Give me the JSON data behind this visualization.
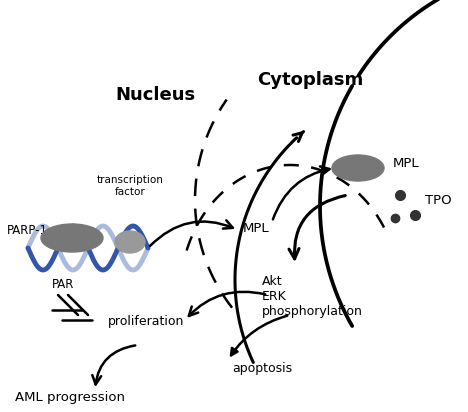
{
  "background_color": "#ffffff",
  "nucleus_label": "Nucleus",
  "cytoplasm_label": "Cytoplasm",
  "mpl_receptor_label": "MPL",
  "tpo_label": "TPO",
  "parp1_label": "PARP-1",
  "par_label": "PAR",
  "transcription_factor_label": "transcription\nfactor",
  "mpl_arrow_label": "MPL",
  "akt_label": "Akt\nERK\nphosphorylation",
  "proliferation_label": "proliferation",
  "apoptosis_label": "apoptosis",
  "aml_label": "AML progression",
  "dna_blue_dark": "#3355aa",
  "dna_blue_light": "#aabbdd",
  "protein_gray_dark": "#777777",
  "protein_gray_light": "#999999",
  "dot_gray": "#333333",
  "line_color": "#000000"
}
